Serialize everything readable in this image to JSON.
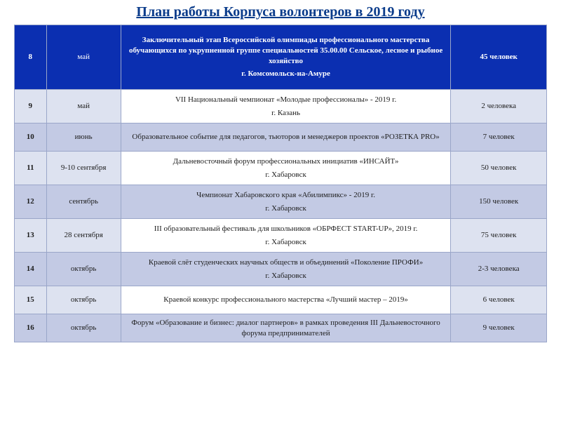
{
  "title": "План работы Корпуса волонтеров в 2019 году",
  "colors": {
    "header_bg": "#0b2fb1",
    "header_text": "#ffffff",
    "alt_bg": "#c3cae4",
    "norm_side_bg": "#dde2f0",
    "norm_event_bg": "#ffffff",
    "border": "#9aa6c9",
    "title_color": "#0b3c8b",
    "num_color": "#0b2fb1"
  },
  "table": {
    "type": "table",
    "columns": [
      "num",
      "month",
      "event",
      "count"
    ],
    "col_widths_pct": [
      6,
      14,
      62,
      18
    ],
    "rows": [
      {
        "num": "8",
        "month": "май",
        "event_l1": "Заключительный этап Всероссийской олимпиады профессионального мастерства обучающихся по укрупненной группе специальностей 35.00.00 Сельское, лесное и рыбное хозяйство",
        "event_l2": "г. Комсомольск-на-Амуре",
        "count": "45 человек",
        "style": "first"
      },
      {
        "num": "9",
        "month": "май",
        "event_l1": "VII Национальный чемпионат «Молодые профессионалы» - 2019 г.",
        "event_l2": "г. Казань",
        "count": "2 человека",
        "style": "norm"
      },
      {
        "num": "10",
        "month": "июнь",
        "event_l1": "Образовательное событие для педагогов, тьюторов и менеджеров проектов «РОЗЕТКА PRO»",
        "event_l2": "",
        "count": "7 человек",
        "style": "alt"
      },
      {
        "num": "11",
        "month": "9-10 сентября",
        "event_l1": "Дальневосточный форум профессиональных инициатив «ИНСАЙТ»",
        "event_l2": "г. Хабаровск",
        "count": "50 человек",
        "style": "norm"
      },
      {
        "num": "12",
        "month": "сентябрь",
        "event_l1": "Чемпионат Хабаровского края «Абилимпикс» - 2019 г.",
        "event_l2": "г. Хабаровск",
        "count": "150 человек",
        "style": "alt"
      },
      {
        "num": "13",
        "month": "28 сентября",
        "event_l1": "III образовательный фестиваль для школьников «ОБРФЕСТ START-UP», 2019 г.",
        "event_l2": "г. Хабаровск",
        "count": "75 человек",
        "style": "norm"
      },
      {
        "num": "14",
        "month": "октябрь",
        "event_l1": "Краевой слёт студенческих научных обществ и объединений «Поколение ПРОФИ»",
        "event_l2": "г. Хабаровск",
        "count": "2-3 человека",
        "style": "alt"
      },
      {
        "num": "15",
        "month": "октябрь",
        "event_l1": "Краевой конкурс профессионального мастерства «Лучший мастер – 2019»",
        "event_l2": "",
        "count": "6 человек",
        "style": "norm"
      },
      {
        "num": "16",
        "month": "октябрь",
        "event_l1": "Форум «Образование и бизнес: диалог партнеров» в рамках проведения III Дальневосточного форума предпринимателей",
        "event_l2": "",
        "count": "9 человек",
        "style": "alt"
      }
    ]
  }
}
